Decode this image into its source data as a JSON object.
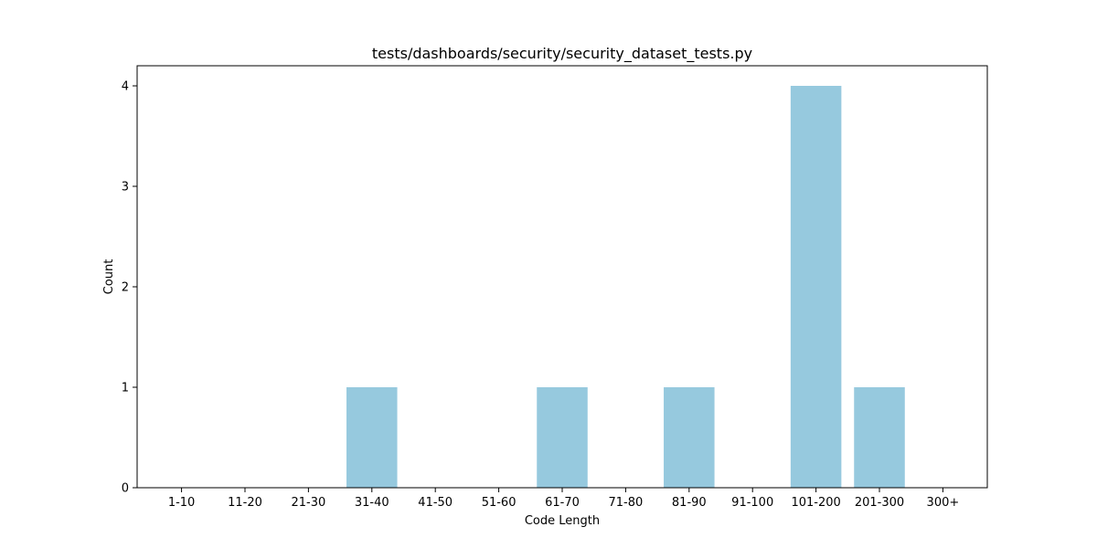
{
  "chart_data": {
    "type": "bar",
    "title": "tests/dashboards/security/security_dataset_tests.py",
    "xlabel": "Code Length",
    "ylabel": "Count",
    "categories": [
      "1-10",
      "11-20",
      "21-30",
      "31-40",
      "41-50",
      "51-60",
      "61-70",
      "71-80",
      "81-90",
      "91-100",
      "101-200",
      "201-300",
      "300+"
    ],
    "values": [
      0,
      0,
      0,
      1,
      0,
      0,
      1,
      0,
      1,
      0,
      4,
      1,
      0
    ],
    "ylim": [
      0,
      4.2
    ],
    "yticks": [
      0,
      1,
      2,
      3,
      4
    ],
    "bar_color": "#96c9de",
    "grid": false,
    "legend": "none"
  }
}
